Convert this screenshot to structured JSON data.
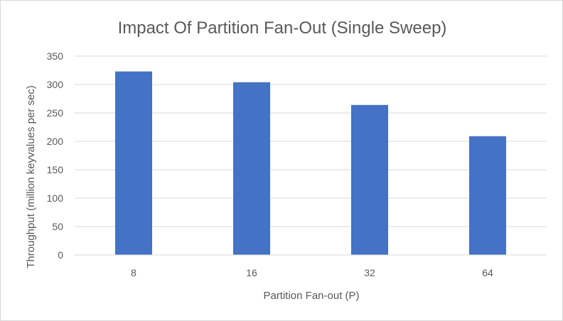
{
  "chart_data": {
    "type": "bar",
    "title": "Impact Of Partition Fan-Out (Single Sweep)",
    "xlabel": "Partition Fan-out (P)",
    "ylabel": "Throughput (million keyvalues per sec)",
    "categories": [
      "8",
      "16",
      "32",
      "64"
    ],
    "values": [
      323,
      304,
      264,
      209
    ],
    "ylim": [
      0,
      350
    ],
    "yticks": [
      0,
      50,
      100,
      150,
      200,
      250,
      300,
      350
    ],
    "grid": true,
    "legend": "none",
    "bar_color": "#4472c4",
    "grid_color": "#d9d9d9",
    "text_color": "#595959"
  }
}
